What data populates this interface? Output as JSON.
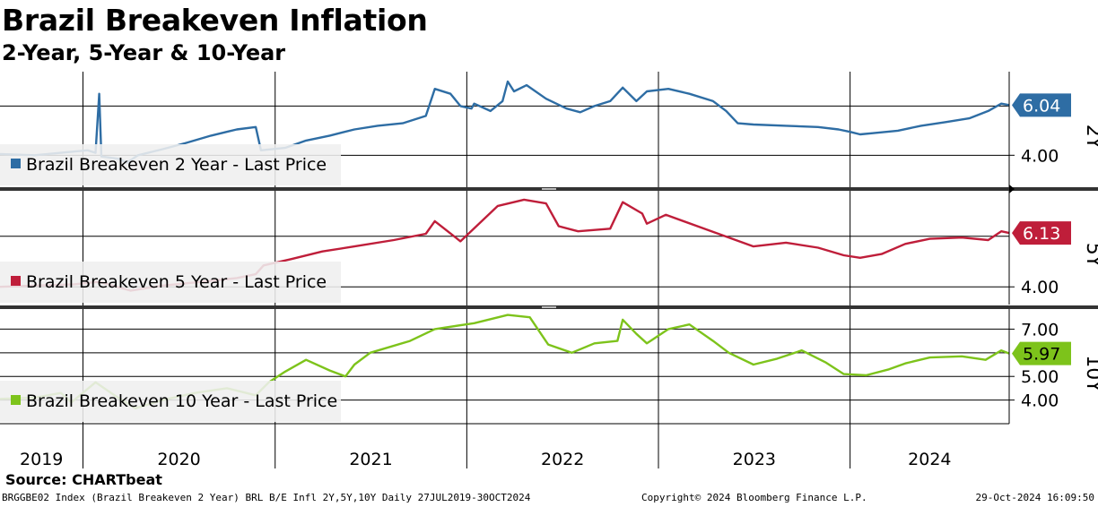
{
  "title": "Brazil Breakeven Inflation",
  "subtitle": "2-Year, 5-Year & 10-Year",
  "source": "Source: CHARTbeat",
  "footer": {
    "left": "BRGGBE02 Index (Brazil Breakeven 2 Year) BRL B/E Infl 2Y,5Y,10Y  Daily 27JUL2019-30OCT2024",
    "center": "Copyright© 2024 Bloomberg Finance L.P.",
    "right": "29-Oct-2024 16:09:50"
  },
  "chart_data": {
    "type": "line",
    "x_axis": {
      "start": "2019-07-27",
      "end": "2024-10-30",
      "labels": [
        "2019",
        "2020",
        "2021",
        "2022",
        "2023",
        "2024"
      ],
      "major_gridlines": [
        "2020-01-01",
        "2021-01-01",
        "2022-01-01",
        "2023-01-01",
        "2024-01-01"
      ]
    },
    "grid": true,
    "legend_position": "bottom-left",
    "panels": [
      {
        "key": "2y",
        "panel_label": "2Y",
        "series_name": "Brazil Breakeven 2 Year - Last Price",
        "color": "#2e6da4",
        "last_value": "6.04",
        "yticks": [
          4.0
        ],
        "ytick_labels": [
          "4.00"
        ],
        "gridlines": [
          4.0,
          6.0
        ],
        "ylim": [
          2.7,
          7.4
        ],
        "points": [
          [
            "2019-07-27",
            4.05
          ],
          [
            "2019-10-01",
            4.0
          ],
          [
            "2019-12-15",
            4.15
          ],
          [
            "2020-01-10",
            4.2
          ],
          [
            "2020-01-25",
            4.1
          ],
          [
            "2020-02-01",
            6.5
          ],
          [
            "2020-02-05",
            3.95
          ],
          [
            "2020-03-10",
            3.85
          ],
          [
            "2020-03-25",
            3.7
          ],
          [
            "2020-04-15",
            4.0
          ],
          [
            "2020-06-01",
            4.25
          ],
          [
            "2020-07-15",
            4.5
          ],
          [
            "2020-09-01",
            4.8
          ],
          [
            "2020-10-20",
            5.05
          ],
          [
            "2020-11-25",
            5.15
          ],
          [
            "2020-12-05",
            4.2
          ],
          [
            "2021-01-20",
            4.3
          ],
          [
            "2021-03-01",
            4.6
          ],
          [
            "2021-04-15",
            4.8
          ],
          [
            "2021-06-01",
            5.05
          ],
          [
            "2021-07-15",
            5.2
          ],
          [
            "2021-09-01",
            5.3
          ],
          [
            "2021-10-15",
            5.6
          ],
          [
            "2021-11-01",
            6.7
          ],
          [
            "2021-12-01",
            6.5
          ],
          [
            "2021-12-20",
            6.0
          ],
          [
            "2022-01-10",
            5.9
          ],
          [
            "2022-01-15",
            6.1
          ],
          [
            "2022-02-15",
            5.8
          ],
          [
            "2022-03-10",
            6.2
          ],
          [
            "2022-03-20",
            7.0
          ],
          [
            "2022-04-01",
            6.6
          ],
          [
            "2022-04-25",
            6.85
          ],
          [
            "2022-06-01",
            6.3
          ],
          [
            "2022-07-10",
            5.9
          ],
          [
            "2022-08-05",
            5.75
          ],
          [
            "2022-09-01",
            6.0
          ],
          [
            "2022-10-01",
            6.2
          ],
          [
            "2022-10-25",
            6.75
          ],
          [
            "2022-11-20",
            6.2
          ],
          [
            "2022-12-10",
            6.6
          ],
          [
            "2023-01-20",
            6.7
          ],
          [
            "2023-03-01",
            6.5
          ],
          [
            "2023-04-15",
            6.2
          ],
          [
            "2023-05-10",
            5.8
          ],
          [
            "2023-06-01",
            5.3
          ],
          [
            "2023-07-01",
            5.25
          ],
          [
            "2023-09-01",
            5.2
          ],
          [
            "2023-11-01",
            5.15
          ],
          [
            "2023-12-10",
            5.05
          ],
          [
            "2024-01-01",
            4.95
          ],
          [
            "2024-01-20",
            4.85
          ],
          [
            "2024-02-15",
            4.9
          ],
          [
            "2024-04-01",
            5.0
          ],
          [
            "2024-05-15",
            5.2
          ],
          [
            "2024-07-01",
            5.35
          ],
          [
            "2024-08-15",
            5.5
          ],
          [
            "2024-09-20",
            5.8
          ],
          [
            "2024-10-15",
            6.1
          ],
          [
            "2024-10-30",
            6.04
          ]
        ]
      },
      {
        "key": "5y",
        "panel_label": "5Y",
        "series_name": "Brazil Breakeven 5 Year - Last Price",
        "color": "#bf1e3a",
        "last_value": "6.13",
        "yticks": [
          4.0
        ],
        "ytick_labels": [
          "4.00"
        ],
        "gridlines": [
          4.0,
          6.0
        ],
        "ylim": [
          3.3,
          7.8
        ],
        "points": [
          [
            "2019-07-27",
            4.0
          ],
          [
            "2019-10-01",
            4.05
          ],
          [
            "2019-12-15",
            4.1
          ],
          [
            "2020-02-01",
            4.2
          ],
          [
            "2020-04-01",
            3.85
          ],
          [
            "2020-06-01",
            4.05
          ],
          [
            "2020-08-15",
            4.2
          ],
          [
            "2020-10-20",
            4.35
          ],
          [
            "2020-11-25",
            4.5
          ],
          [
            "2020-12-10",
            4.85
          ],
          [
            "2021-02-01",
            5.1
          ],
          [
            "2021-04-01",
            5.4
          ],
          [
            "2021-06-01",
            5.6
          ],
          [
            "2021-08-15",
            5.85
          ],
          [
            "2021-10-15",
            6.1
          ],
          [
            "2021-11-01",
            6.6
          ],
          [
            "2021-12-20",
            5.8
          ],
          [
            "2022-03-01",
            7.2
          ],
          [
            "2022-04-20",
            7.45
          ],
          [
            "2022-06-01",
            7.3
          ],
          [
            "2022-06-25",
            6.4
          ],
          [
            "2022-08-01",
            6.2
          ],
          [
            "2022-10-01",
            6.3
          ],
          [
            "2022-10-25",
            7.35
          ],
          [
            "2022-12-01",
            6.9
          ],
          [
            "2022-12-10",
            6.5
          ],
          [
            "2023-01-15",
            6.85
          ],
          [
            "2023-07-01",
            5.6
          ],
          [
            "2023-09-01",
            5.75
          ],
          [
            "2023-11-01",
            5.55
          ],
          [
            "2023-12-20",
            5.25
          ],
          [
            "2024-01-20",
            5.15
          ],
          [
            "2024-03-01",
            5.3
          ],
          [
            "2024-04-15",
            5.7
          ],
          [
            "2024-06-01",
            5.9
          ],
          [
            "2024-08-01",
            5.95
          ],
          [
            "2024-09-20",
            5.85
          ],
          [
            "2024-10-15",
            6.2
          ],
          [
            "2024-10-30",
            6.13
          ]
        ]
      },
      {
        "key": "10y",
        "panel_label": "10Y",
        "series_name": "Brazil Breakeven 10 Year - Last Price",
        "color": "#7dc31b",
        "last_value": "5.97",
        "yticks": [
          4.0,
          5.0,
          7.0
        ],
        "ytick_labels": [
          "4.00",
          "5.00",
          "7.00"
        ],
        "gridlines": [
          4.0,
          5.0,
          6.0,
          7.0
        ],
        "ylim": [
          3.0,
          7.85
        ],
        "points": [
          [
            "2019-07-27",
            4.05
          ],
          [
            "2019-10-01",
            4.1
          ],
          [
            "2019-11-20",
            4.3
          ],
          [
            "2019-12-10",
            3.9
          ],
          [
            "2020-01-25",
            4.75
          ],
          [
            "2020-03-01",
            4.2
          ],
          [
            "2020-04-10",
            3.65
          ],
          [
            "2020-06-01",
            4.0
          ],
          [
            "2020-08-01",
            4.3
          ],
          [
            "2020-10-01",
            4.5
          ],
          [
            "2020-11-25",
            4.2
          ],
          [
            "2020-12-20",
            4.75
          ],
          [
            "2021-01-20",
            5.2
          ],
          [
            "2021-03-01",
            5.7
          ],
          [
            "2021-04-15",
            5.25
          ],
          [
            "2021-05-15",
            5.0
          ],
          [
            "2021-06-01",
            5.5
          ],
          [
            "2021-07-01",
            6.0
          ],
          [
            "2021-09-15",
            6.5
          ],
          [
            "2021-11-01",
            7.0
          ],
          [
            "2022-01-15",
            7.25
          ],
          [
            "2022-03-20",
            7.6
          ],
          [
            "2022-05-01",
            7.5
          ],
          [
            "2022-06-05",
            6.35
          ],
          [
            "2022-07-20",
            6.0
          ],
          [
            "2022-09-01",
            6.4
          ],
          [
            "2022-10-15",
            6.5
          ],
          [
            "2022-10-25",
            7.4
          ],
          [
            "2022-11-20",
            6.8
          ],
          [
            "2022-12-10",
            6.4
          ],
          [
            "2023-01-20",
            7.0
          ],
          [
            "2023-03-01",
            7.2
          ],
          [
            "2023-04-15",
            6.5
          ],
          [
            "2023-05-15",
            6.0
          ],
          [
            "2023-07-01",
            5.5
          ],
          [
            "2023-08-15",
            5.75
          ],
          [
            "2023-10-01",
            6.1
          ],
          [
            "2023-11-15",
            5.6
          ],
          [
            "2023-12-20",
            5.1
          ],
          [
            "2024-02-01",
            5.05
          ],
          [
            "2024-03-15",
            5.3
          ],
          [
            "2024-04-15",
            5.55
          ],
          [
            "2024-06-01",
            5.8
          ],
          [
            "2024-08-01",
            5.85
          ],
          [
            "2024-09-15",
            5.7
          ],
          [
            "2024-10-15",
            6.1
          ],
          [
            "2024-10-30",
            5.97
          ]
        ]
      }
    ]
  }
}
